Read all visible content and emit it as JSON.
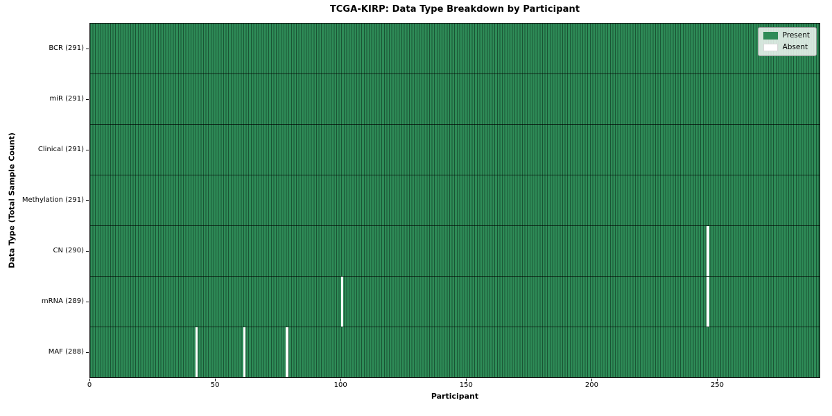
{
  "chart_data": {
    "type": "heatmap",
    "title": "TCGA-KIRP: Data Type Breakdown by Participant",
    "xlabel": "Participant",
    "ylabel": "Data Type (Total Sample Count)",
    "x_ticks": [
      0,
      50,
      100,
      150,
      200,
      250
    ],
    "x_range": [
      0,
      291
    ],
    "n_participants": 291,
    "grid": false,
    "legend_position": "upper right",
    "colors": {
      "present": "#2e8b57",
      "absent": "#ffffff",
      "cell_border": "#1d4f35"
    },
    "legend": [
      {
        "label": "Present",
        "color": "#2e8b57"
      },
      {
        "label": "Absent",
        "color": "#ffffff"
      }
    ],
    "rows": [
      {
        "label": "BCR (291)",
        "data_type": "BCR",
        "present_count": 291,
        "absent_participants": []
      },
      {
        "label": "miR (291)",
        "data_type": "miR",
        "present_count": 291,
        "absent_participants": []
      },
      {
        "label": "Clinical (291)",
        "data_type": "Clinical",
        "present_count": 291,
        "absent_participants": []
      },
      {
        "label": "Methylation (291)",
        "data_type": "Methylation",
        "present_count": 291,
        "absent_participants": []
      },
      {
        "label": "CN (290)",
        "data_type": "CN",
        "present_count": 290,
        "absent_participants": [
          246
        ]
      },
      {
        "label": "mRNA (289)",
        "data_type": "mRNA",
        "present_count": 289,
        "absent_participants": [
          100,
          246
        ]
      },
      {
        "label": "MAF (288)",
        "data_type": "MAF",
        "present_count": 288,
        "absent_participants": [
          42,
          61,
          78
        ]
      }
    ]
  }
}
